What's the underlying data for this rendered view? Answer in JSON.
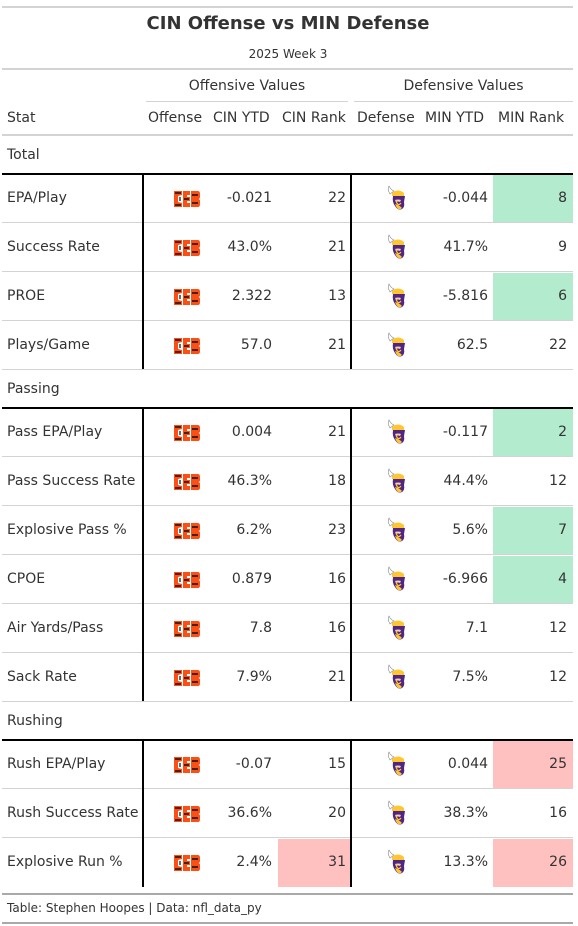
{
  "chart_data": {
    "type": "table",
    "title": "CIN Offense vs MIN Defense",
    "subtitle": "2025 Week 3",
    "spanners": [
      "Offensive Values",
      "Defensive Values"
    ],
    "columns": [
      "Stat",
      "Offense",
      "CIN YTD",
      "CIN Rank",
      "Defense",
      "MIN YTD",
      "MIN Rank"
    ],
    "colors": {
      "good": "#b3ebce",
      "bad": "#ffc0c0",
      "bengals_orange": "#fb4f14",
      "vikings_purple": "#4f2683",
      "vikings_gold": "#ffc62f"
    },
    "groups": [
      {
        "name": "Total",
        "rows": [
          {
            "stat": "EPA/Play",
            "cin_ytd": "-0.021",
            "cin_rank": "22",
            "min_ytd": "-0.044",
            "min_rank": "8",
            "cin_hl": "",
            "min_hl": "good"
          },
          {
            "stat": "Success Rate",
            "cin_ytd": "43.0%",
            "cin_rank": "21",
            "min_ytd": "41.7%",
            "min_rank": "9",
            "cin_hl": "",
            "min_hl": ""
          },
          {
            "stat": "PROE",
            "cin_ytd": "2.322",
            "cin_rank": "13",
            "min_ytd": "-5.816",
            "min_rank": "6",
            "cin_hl": "",
            "min_hl": "good"
          },
          {
            "stat": "Plays/Game",
            "cin_ytd": "57.0",
            "cin_rank": "21",
            "min_ytd": "62.5",
            "min_rank": "22",
            "cin_hl": "",
            "min_hl": ""
          }
        ]
      },
      {
        "name": "Passing",
        "rows": [
          {
            "stat": "Pass EPA/Play",
            "cin_ytd": "0.004",
            "cin_rank": "21",
            "min_ytd": "-0.117",
            "min_rank": "2",
            "cin_hl": "",
            "min_hl": "good"
          },
          {
            "stat": "Pass Success Rate",
            "cin_ytd": "46.3%",
            "cin_rank": "18",
            "min_ytd": "44.4%",
            "min_rank": "12",
            "cin_hl": "",
            "min_hl": ""
          },
          {
            "stat": "Explosive Pass %",
            "cin_ytd": "6.2%",
            "cin_rank": "23",
            "min_ytd": "5.6%",
            "min_rank": "7",
            "cin_hl": "",
            "min_hl": "good"
          },
          {
            "stat": "CPOE",
            "cin_ytd": "0.879",
            "cin_rank": "16",
            "min_ytd": "-6.966",
            "min_rank": "4",
            "cin_hl": "",
            "min_hl": "good"
          },
          {
            "stat": "Air Yards/Pass",
            "cin_ytd": "7.8",
            "cin_rank": "16",
            "min_ytd": "7.1",
            "min_rank": "12",
            "cin_hl": "",
            "min_hl": ""
          },
          {
            "stat": "Sack Rate",
            "cin_ytd": "7.9%",
            "cin_rank": "21",
            "min_ytd": "7.5%",
            "min_rank": "12",
            "cin_hl": "",
            "min_hl": ""
          }
        ]
      },
      {
        "name": "Rushing",
        "rows": [
          {
            "stat": "Rush EPA/Play",
            "cin_ytd": "-0.07",
            "cin_rank": "15",
            "min_ytd": "0.044",
            "min_rank": "25",
            "cin_hl": "",
            "min_hl": "bad"
          },
          {
            "stat": "Rush Success Rate",
            "cin_ytd": "36.6%",
            "cin_rank": "20",
            "min_ytd": "38.3%",
            "min_rank": "16",
            "cin_hl": "",
            "min_hl": ""
          },
          {
            "stat": "Explosive Run %",
            "cin_ytd": "2.4%",
            "cin_rank": "31",
            "min_ytd": "13.3%",
            "min_rank": "26",
            "cin_hl": "bad",
            "min_hl": "bad"
          }
        ]
      }
    ],
    "source_note": "Table: Stephen Hoopes | Data: nfl_data_py"
  }
}
